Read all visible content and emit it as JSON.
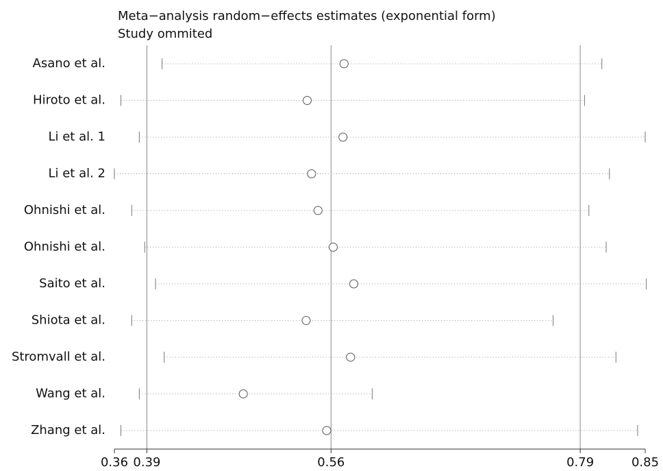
{
  "chart_data": {
    "type": "influence",
    "title": "Meta−analysis random−effects estimates (exponential form)",
    "subtitle": "Study ommited",
    "categories": [
      "Asano et al.",
      "Hiroto et al.",
      "Li et al. 1",
      "Li et al. 2",
      "Ohnishi et al.",
      "Ohnishi et al.",
      "Saito et al.",
      "Shiota et al.",
      "Stromvall et al.",
      "Wang et al.",
      "Zhang et al."
    ],
    "values": [
      0.572,
      0.538,
      0.571,
      0.542,
      0.548,
      0.562,
      0.581,
      0.537,
      0.578,
      0.479,
      0.556
    ],
    "lower": [
      0.404,
      0.366,
      0.383,
      0.36,
      0.376,
      0.388,
      0.398,
      0.376,
      0.406,
      0.383,
      0.366
    ],
    "upper": [
      0.81,
      0.794,
      0.85,
      0.817,
      0.798,
      0.814,
      0.851,
      0.765,
      0.823,
      0.598,
      0.843
    ],
    "overall": {
      "lower": 0.39,
      "estimate": 0.56,
      "upper": 0.79
    },
    "xlim": [
      0.36,
      0.85
    ],
    "xticks": [
      0.36,
      0.39,
      0.56,
      0.79,
      0.85
    ]
  }
}
